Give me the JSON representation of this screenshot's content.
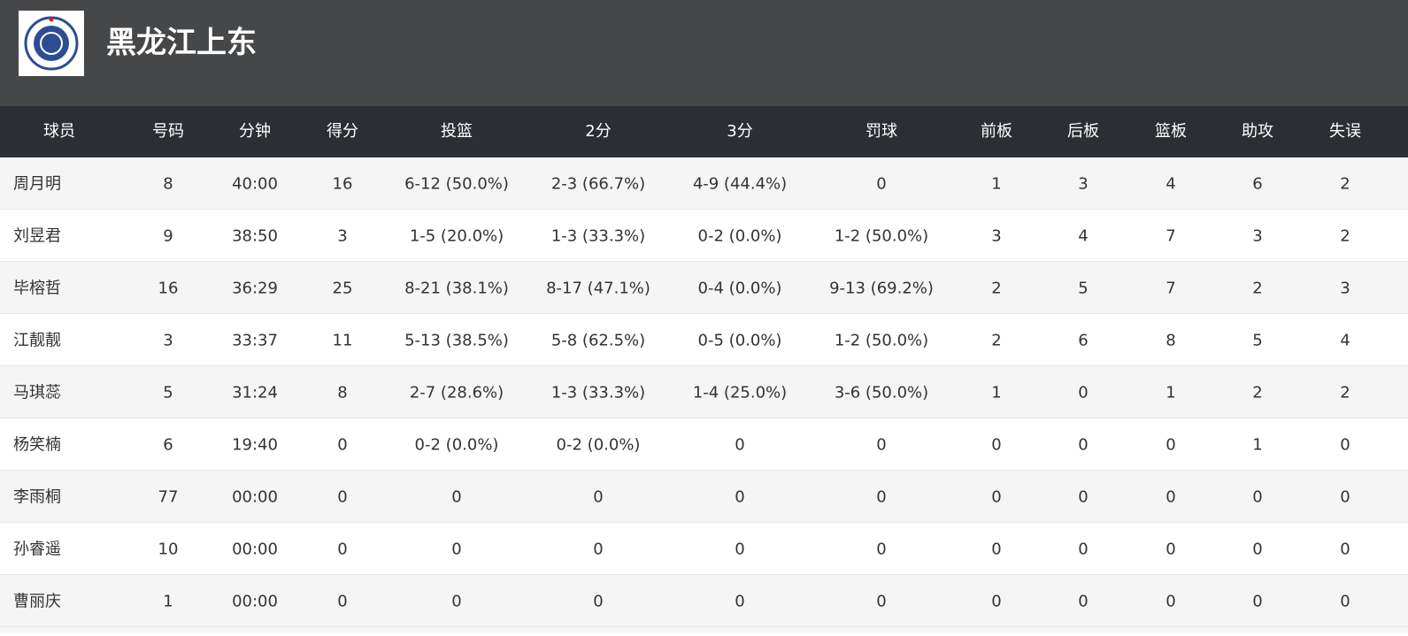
{
  "header": {
    "title": "黑龙江上东"
  },
  "table": {
    "columns": [
      "球员",
      "号码",
      "分钟",
      "得分",
      "投篮",
      "2分",
      "3分",
      "罚球",
      "前板",
      "后板",
      "篮板",
      "助攻",
      "失误"
    ],
    "rows": [
      [
        "周月明",
        "8",
        "40:00",
        "16",
        "6-12 (50.0%)",
        "2-3 (66.7%)",
        "4-9 (44.4%)",
        "0",
        "1",
        "3",
        "4",
        "6",
        "2"
      ],
      [
        "刘昱君",
        "9",
        "38:50",
        "3",
        "1-5 (20.0%)",
        "1-3 (33.3%)",
        "0-2 (0.0%)",
        "1-2 (50.0%)",
        "3",
        "4",
        "7",
        "3",
        "2"
      ],
      [
        "毕榕哲",
        "16",
        "36:29",
        "25",
        "8-21 (38.1%)",
        "8-17 (47.1%)",
        "0-4 (0.0%)",
        "9-13 (69.2%)",
        "2",
        "5",
        "7",
        "2",
        "3"
      ],
      [
        "江靓靓",
        "3",
        "33:37",
        "11",
        "5-13 (38.5%)",
        "5-8 (62.5%)",
        "0-5 (0.0%)",
        "1-2 (50.0%)",
        "2",
        "6",
        "8",
        "5",
        "4"
      ],
      [
        "马琪蕊",
        "5",
        "31:24",
        "8",
        "2-7 (28.6%)",
        "1-3 (33.3%)",
        "1-4 (25.0%)",
        "3-6 (50.0%)",
        "1",
        "0",
        "1",
        "2",
        "2"
      ],
      [
        "杨笑楠",
        "6",
        "19:40",
        "0",
        "0-2 (0.0%)",
        "0-2 (0.0%)",
        "0",
        "0",
        "0",
        "0",
        "0",
        "1",
        "0"
      ],
      [
        "李雨桐",
        "77",
        "00:00",
        "0",
        "0",
        "0",
        "0",
        "0",
        "0",
        "0",
        "0",
        "0",
        "0"
      ],
      [
        "孙睿遥",
        "10",
        "00:00",
        "0",
        "0",
        "0",
        "0",
        "0",
        "0",
        "0",
        "0",
        "0",
        "0"
      ],
      [
        "曹丽庆",
        "1",
        "00:00",
        "0",
        "0",
        "0",
        "0",
        "0",
        "0",
        "0",
        "0",
        "0",
        "0"
      ]
    ]
  }
}
